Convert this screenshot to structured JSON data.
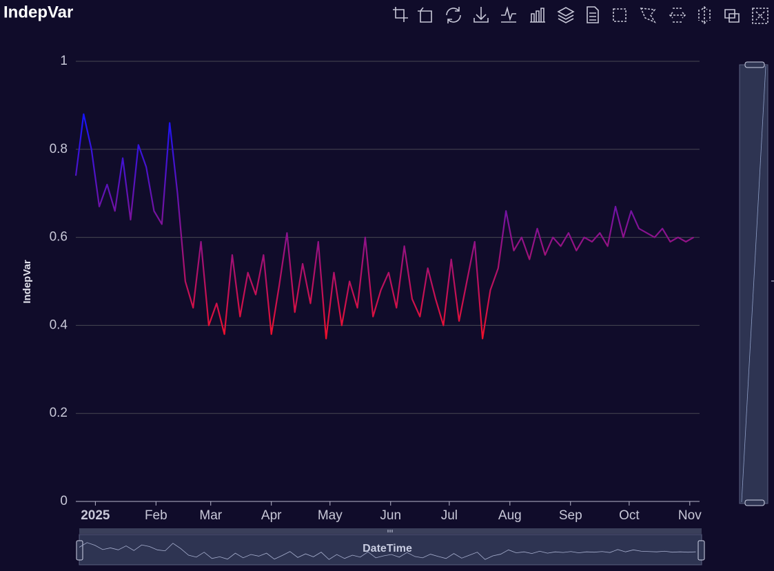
{
  "chart_data": {
    "type": "line",
    "title": "IndepVar",
    "y_label": "IndepVar",
    "zoom_label": "DateTime",
    "x": [
      "2024-12-22",
      "2024-12-26",
      "2024-12-30",
      "2025-01-03",
      "2025-01-07",
      "2025-01-11",
      "2025-01-15",
      "2025-01-19",
      "2025-01-23",
      "2025-01-27",
      "2025-01-31",
      "2025-02-04",
      "2025-02-08",
      "2025-02-12",
      "2025-02-16",
      "2025-02-20",
      "2025-02-24",
      "2025-02-28",
      "2025-03-04",
      "2025-03-08",
      "2025-03-12",
      "2025-03-16",
      "2025-03-20",
      "2025-03-24",
      "2025-03-28",
      "2025-04-01",
      "2025-04-05",
      "2025-04-09",
      "2025-04-13",
      "2025-04-17",
      "2025-04-21",
      "2025-04-25",
      "2025-04-29",
      "2025-05-03",
      "2025-05-07",
      "2025-05-11",
      "2025-05-15",
      "2025-05-19",
      "2025-05-23",
      "2025-05-27",
      "2025-05-31",
      "2025-06-04",
      "2025-06-08",
      "2025-06-12",
      "2025-06-16",
      "2025-06-20",
      "2025-06-24",
      "2025-06-28",
      "2025-07-02",
      "2025-07-06",
      "2025-07-10",
      "2025-07-14",
      "2025-07-18",
      "2025-07-22",
      "2025-07-26",
      "2025-07-30",
      "2025-08-03",
      "2025-08-07",
      "2025-08-11",
      "2025-08-15",
      "2025-08-19",
      "2025-08-23",
      "2025-08-27",
      "2025-08-31",
      "2025-09-04",
      "2025-09-08",
      "2025-09-12",
      "2025-09-16",
      "2025-09-20",
      "2025-09-24",
      "2025-09-28",
      "2025-10-02",
      "2025-10-06",
      "2025-10-10",
      "2025-10-14",
      "2025-10-18",
      "2025-10-22",
      "2025-10-26",
      "2025-10-30",
      "2025-11-03"
    ],
    "series": [
      {
        "name": "IndepVar",
        "colors": {
          "low": "#f0102a",
          "high": "#1414ff"
        },
        "values": [
          0.74,
          0.88,
          0.8,
          0.67,
          0.72,
          0.66,
          0.78,
          0.64,
          0.81,
          0.76,
          0.66,
          0.63,
          0.86,
          0.7,
          0.5,
          0.44,
          0.59,
          0.4,
          0.45,
          0.38,
          0.56,
          0.42,
          0.52,
          0.47,
          0.56,
          0.38,
          0.49,
          0.61,
          0.43,
          0.54,
          0.45,
          0.59,
          0.37,
          0.52,
          0.4,
          0.5,
          0.44,
          0.6,
          0.42,
          0.48,
          0.52,
          0.44,
          0.58,
          0.46,
          0.42,
          0.53,
          0.46,
          0.4,
          0.55,
          0.41,
          0.5,
          0.59,
          0.37,
          0.48,
          0.53,
          0.66,
          0.57,
          0.6,
          0.55,
          0.62,
          0.56,
          0.6,
          0.58,
          0.61,
          0.57,
          0.6,
          0.59,
          0.61,
          0.58,
          0.67,
          0.6,
          0.66,
          0.62,
          0.61,
          0.6,
          0.62,
          0.59,
          0.6,
          0.59,
          0.6
        ]
      }
    ],
    "xlim": [
      "2024-12-22",
      "2025-11-06"
    ],
    "xticks": [
      {
        "value": "2025-01-01",
        "label": "2025"
      },
      {
        "value": "2025-02-01",
        "label": "Feb"
      },
      {
        "value": "2025-03-01",
        "label": "Mar"
      },
      {
        "value": "2025-04-01",
        "label": "Apr"
      },
      {
        "value": "2025-05-01",
        "label": "May"
      },
      {
        "value": "2025-06-01",
        "label": "Jun"
      },
      {
        "value": "2025-07-01",
        "label": "Jul"
      },
      {
        "value": "2025-08-01",
        "label": "Aug"
      },
      {
        "value": "2025-09-01",
        "label": "Sep"
      },
      {
        "value": "2025-10-01",
        "label": "Oct"
      },
      {
        "value": "2025-11-01",
        "label": "Nov"
      }
    ],
    "ylim": [
      0,
      1
    ],
    "yticks": [
      0,
      0.2,
      0.4,
      0.6,
      0.8,
      1
    ],
    "grid": true
  }
}
